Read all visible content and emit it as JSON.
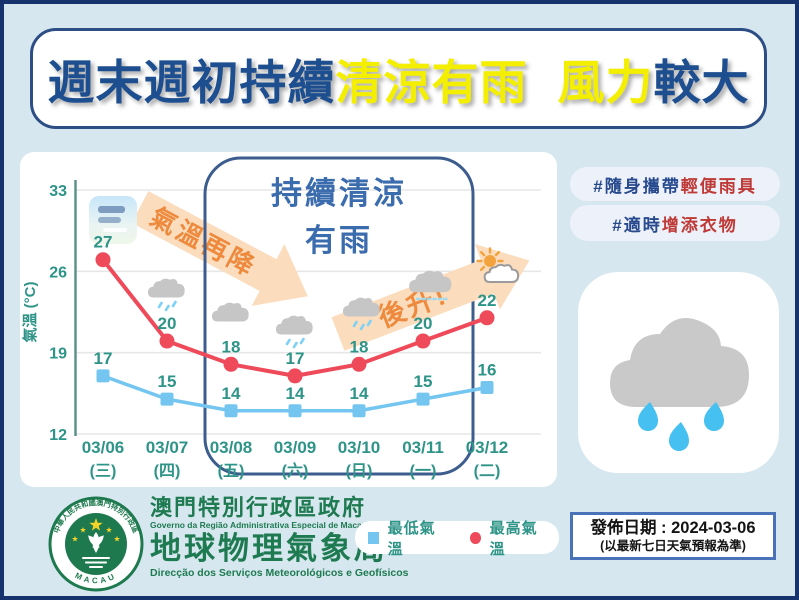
{
  "title": {
    "segments": [
      {
        "text": "週末週初持續",
        "color": "#1d4e8f"
      },
      {
        "text": "清涼有雨",
        "color": "#f4ef00"
      },
      {
        "text": "風力",
        "color": "#f4ef00",
        "gap_before": true
      },
      {
        "text": "較大",
        "color": "#1d4e8f"
      }
    ]
  },
  "hashtags": [
    {
      "prefix": "#隨身攜帶",
      "highlight": "輕便雨具"
    },
    {
      "prefix": "#適時",
      "highlight": "增添衣物"
    }
  ],
  "chart_data": {
    "type": "line",
    "ylabel": "氣溫 (°C)",
    "yticks": [
      33,
      26,
      19,
      12
    ],
    "ylim": [
      12,
      33
    ],
    "grid": true,
    "categories": [
      "03/06",
      "03/07",
      "03/08",
      "03/09",
      "03/10",
      "03/11",
      "03/12"
    ],
    "weekdays": [
      "(三)",
      "(四)",
      "(五)",
      "(六)",
      "(日)",
      "(一)",
      "(二)"
    ],
    "series": [
      {
        "name": "最低氣溫",
        "marker": "square",
        "color": "#74c6f0",
        "values": [
          17,
          15,
          14,
          14,
          14,
          15,
          16
        ]
      },
      {
        "name": "最高氣溫",
        "marker": "circle",
        "color": "#ee4a5a",
        "values": [
          27,
          20,
          18,
          17,
          18,
          20,
          22
        ]
      }
    ],
    "value_label_color": "#2e9488",
    "day_icons": [
      "mist",
      "cloud-rain",
      "cloud",
      "cloud-rain",
      "cloud-rain",
      "cloud-drizzle",
      "sun-cloud"
    ],
    "annotations": {
      "highlight_box": {
        "line1": "持續清涼",
        "line2": "有雨",
        "covers_days": [
          "03/08",
          "03/09",
          "03/10",
          "03/11"
        ]
      },
      "arrow_down_label": "氣溫再降",
      "arrow_up_label": "後升!"
    },
    "legend_position": "bottom"
  },
  "legend": {
    "items": [
      {
        "label": "最低氣溫",
        "marker": "square",
        "color": "#74c6f0"
      },
      {
        "label": "最高氣溫",
        "marker": "circle",
        "color": "#ee4a5a"
      }
    ]
  },
  "footer": {
    "gov_zh": "澳門特別行政區政府",
    "gov_pt": "Governo da Região Administrativa Especial de Macau",
    "bureau_zh": "地球物理氣象局",
    "bureau_pt": "Direcção dos Serviços Meteorológicos e Geofísicos",
    "logo_ring_top": "中華人民共和國澳門特別行政區",
    "logo_ring_bottom": "MACAU"
  },
  "release": {
    "line1": "發佈日期 : 2024-03-06",
    "line2": "(以最新七日天氣預報為準)"
  }
}
